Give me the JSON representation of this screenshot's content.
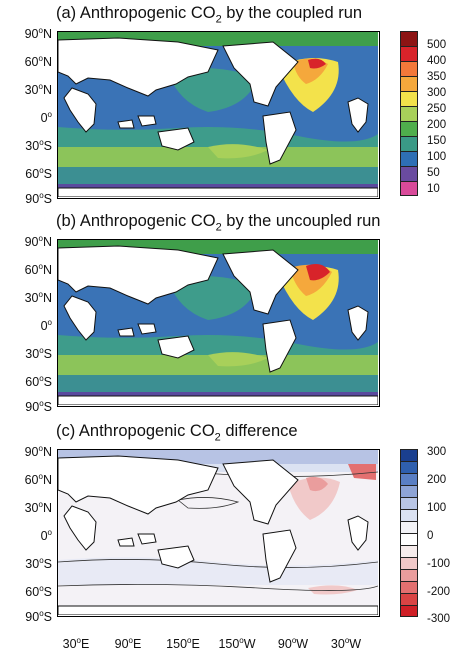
{
  "panels": [
    {
      "title_prefix": "(a) Anthropogenic CO",
      "title_sub": "2",
      "title_suffix": " by the coupled run"
    },
    {
      "title_prefix": "(b) Anthropogenic CO",
      "title_sub": "2",
      "title_suffix": " by the uncoupled run"
    },
    {
      "title_prefix": "(c) Anthropogenic CO",
      "title_sub": "2",
      "title_suffix": " difference"
    }
  ],
  "lat_labels": [
    "90",
    "60",
    "30",
    "0",
    "30",
    "60",
    "90"
  ],
  "lat_hemis": [
    "N",
    "N",
    "N",
    "",
    "S",
    "S",
    "S"
  ],
  "lon_labels": [
    "30",
    "90",
    "150",
    "150",
    "90",
    "30"
  ],
  "lon_hemis": [
    "E",
    "E",
    "E",
    "W",
    "W",
    "W"
  ],
  "degree_symbol": "o",
  "colorbar_top": {
    "ticks": [
      "500",
      "400",
      "350",
      "300",
      "250",
      "200",
      "150",
      "100",
      "50",
      "10"
    ],
    "colors": [
      "#8c1414",
      "#d8232a",
      "#f3783a",
      "#f5a83c",
      "#f3e24b",
      "#a8d05a",
      "#4fae4c",
      "#3a9a86",
      "#2e6fb5",
      "#6a4ba0",
      "#d94a9a"
    ]
  },
  "colorbar_bottom": {
    "ticks": [
      "300",
      "200",
      "100",
      "0",
      "-100",
      "-200",
      "-300"
    ],
    "colors": [
      "#1a3f8f",
      "#2f5fae",
      "#5a7fc4",
      "#8ea4d6",
      "#b9c6e6",
      "#dbe2f2",
      "#f3f3f7",
      "#ffffff",
      "#f6ecec",
      "#f1c9c9",
      "#ea9d9d",
      "#e37070",
      "#d94444",
      "#cf1f26"
    ]
  }
}
